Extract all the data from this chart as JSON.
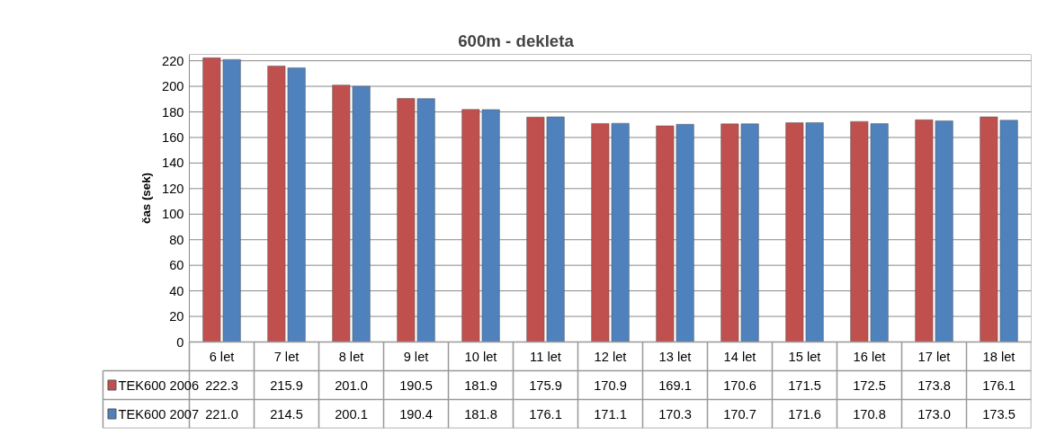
{
  "chart_data": {
    "type": "bar",
    "title": "600m - dekleta",
    "ylabel": "čas (sek)",
    "categories": [
      "6 let",
      "7 let",
      "8 let",
      "9 let",
      "10 let",
      "11 let",
      "12 let",
      "13 let",
      "14 let",
      "15 let",
      "16 let",
      "17 let",
      "18 let"
    ],
    "series": [
      {
        "name": "TEK600 2006",
        "color": "#c0504d",
        "values": [
          222.3,
          215.9,
          201.0,
          190.5,
          181.9,
          175.9,
          170.9,
          169.1,
          170.6,
          171.5,
          172.5,
          173.8,
          176.1
        ],
        "value_labels": [
          "222.3",
          "215.9",
          "201.0",
          "190.5",
          "181.9",
          "175.9",
          "170.9",
          "169.1",
          "170.6",
          "171.5",
          "172.5",
          "173.8",
          "176.1"
        ]
      },
      {
        "name": "TEK600 2007",
        "color": "#4f81bd",
        "values": [
          221.0,
          214.5,
          200.1,
          190.4,
          181.8,
          176.1,
          171.1,
          170.3,
          170.7,
          171.6,
          170.8,
          173.0,
          173.5
        ],
        "value_labels": [
          "221.0",
          "214.5",
          "200.1",
          "190.4",
          "181.8",
          "176.1",
          "171.1",
          "170.3",
          "170.7",
          "171.6",
          "170.8",
          "173.0",
          "173.5"
        ]
      }
    ],
    "ylim": [
      0,
      225
    ],
    "yticks": [
      0,
      20,
      40,
      60,
      80,
      100,
      120,
      140,
      160,
      180,
      200,
      220
    ],
    "grid": "y",
    "legend": "bottom"
  }
}
